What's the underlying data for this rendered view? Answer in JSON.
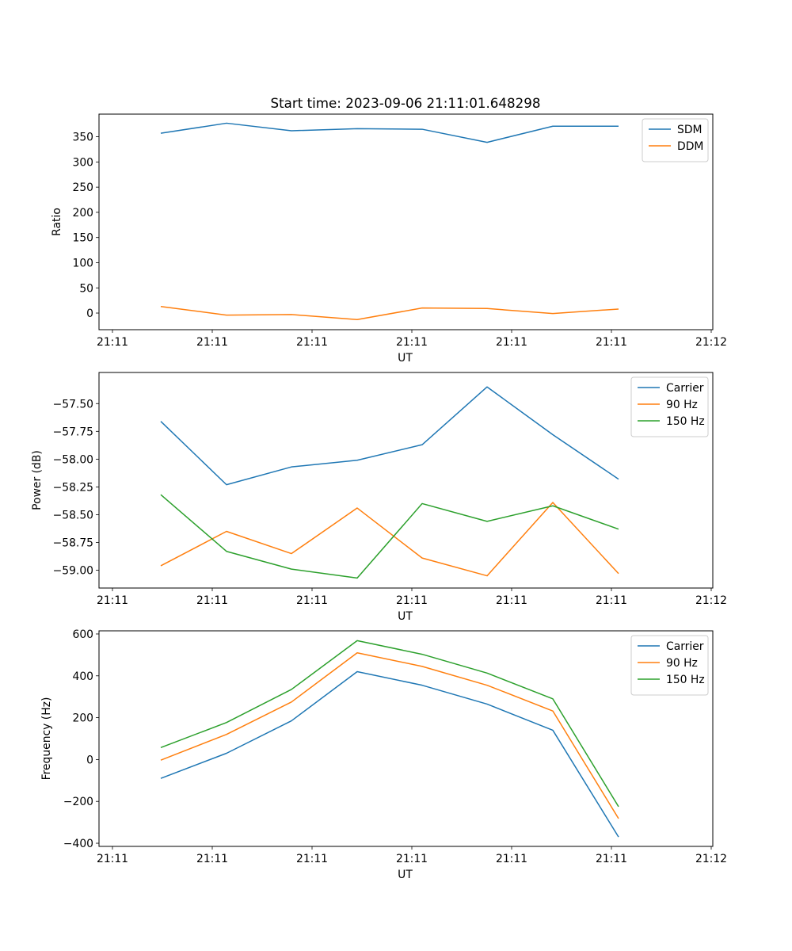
{
  "figure": {
    "title": "Start time: 2023-09-06 21:11:01.648298"
  },
  "chart_data": [
    {
      "type": "line",
      "title": "",
      "xlabel": "UT",
      "ylabel": "Ratio",
      "x_tick_labels": [
        "21:11",
        "21:11",
        "21:11",
        "21:11",
        "21:11",
        "21:11",
        "21:11"
      ],
      "x_tick_last_label": "21:12",
      "y_ticks": [
        "0",
        "50",
        "100",
        "150",
        "200",
        "250",
        "300",
        "350"
      ],
      "ylim": [
        -33,
        395
      ],
      "legend_loc": "upper right",
      "grid": false,
      "series": [
        {
          "name": "SDM",
          "color": "#1f77b4",
          "values": [
            357,
            377,
            362,
            366,
            365,
            339,
            371,
            371
          ]
        },
        {
          "name": "DDM",
          "color": "#ff7f0e",
          "values": [
            13,
            -4,
            -3,
            -13,
            10,
            9,
            -1,
            8
          ]
        }
      ]
    },
    {
      "type": "line",
      "title": "",
      "xlabel": "UT",
      "ylabel": "Power (dB)",
      "x_tick_labels": [
        "21:11",
        "21:11",
        "21:11",
        "21:11",
        "21:11",
        "21:11",
        "21:11"
      ],
      "x_tick_last_label": "21:12",
      "y_ticks": [
        "−59.00",
        "−58.75",
        "−58.50",
        "−58.25",
        "−58.00",
        "−57.75",
        "−57.50"
      ],
      "ylim": [
        -59.16,
        -57.22
      ],
      "legend_loc": "upper right",
      "grid": false,
      "series": [
        {
          "name": "Carrier",
          "color": "#1f77b4",
          "values": [
            -57.66,
            -58.23,
            -58.07,
            -58.01,
            -57.87,
            -57.35,
            -57.78,
            -58.18
          ]
        },
        {
          "name": "90 Hz",
          "color": "#ff7f0e",
          "values": [
            -58.96,
            -58.65,
            -58.85,
            -58.44,
            -58.89,
            -59.05,
            -58.39,
            -59.03
          ]
        },
        {
          "name": "150 Hz",
          "color": "#2ca02c",
          "values": [
            -58.32,
            -58.83,
            -58.99,
            -59.07,
            -58.4,
            -58.56,
            -58.42,
            -58.63
          ]
        }
      ]
    },
    {
      "type": "line",
      "title": "",
      "xlabel": "UT",
      "ylabel": "Frequency (Hz)",
      "x_tick_labels": [
        "21:11",
        "21:11",
        "21:11",
        "21:11",
        "21:11",
        "21:11",
        "21:11"
      ],
      "x_tick_last_label": "21:12",
      "y_ticks": [
        "−400",
        "−200",
        "0",
        "200",
        "400",
        "600"
      ],
      "ylim": [
        -415,
        615
      ],
      "legend_loc": "upper right",
      "grid": false,
      "series": [
        {
          "name": "Carrier",
          "color": "#1f77b4",
          "values": [
            -90,
            30,
            185,
            420,
            355,
            265,
            140,
            -370
          ]
        },
        {
          "name": "90 Hz",
          "color": "#ff7f0e",
          "values": [
            -3,
            120,
            275,
            510,
            445,
            355,
            232,
            -282
          ]
        },
        {
          "name": "150 Hz",
          "color": "#2ca02c",
          "values": [
            57,
            177,
            335,
            568,
            503,
            413,
            290,
            -225
          ]
        }
      ]
    }
  ]
}
